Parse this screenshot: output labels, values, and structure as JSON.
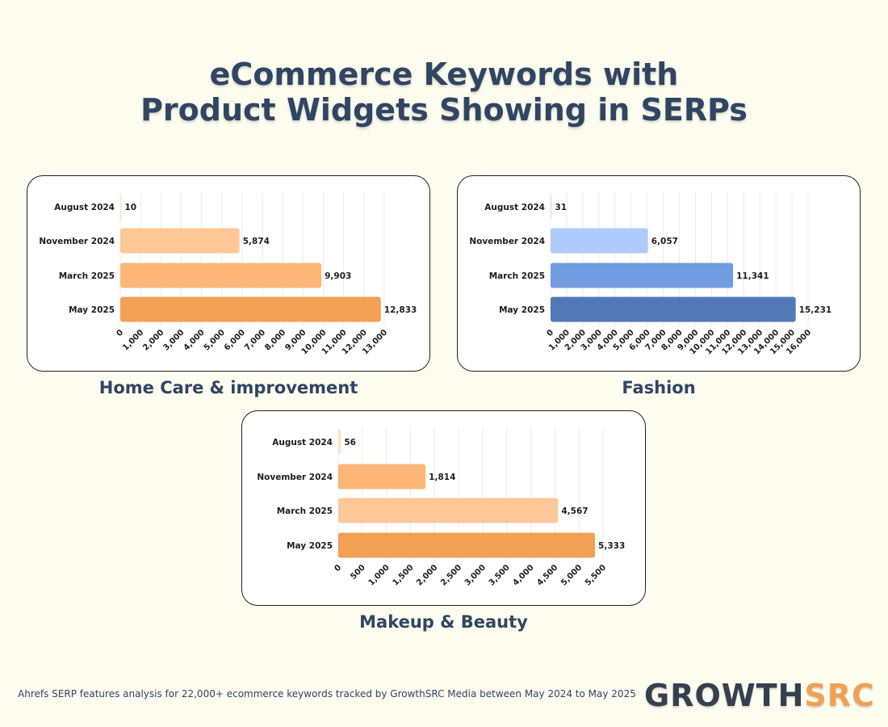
{
  "title_lines": [
    "eCommerce Keywords with",
    "Product Widgets Showing in SERPs"
  ],
  "footer": "Ahrefs SERP features analysis for 22,000+ ecommerce keywords tracked by GrowthSRC Media between May 2024 to May 2025",
  "logo": {
    "part1": "GROWTH",
    "part2": "SRC",
    "color1": "#34404d",
    "color2": "#f0a055"
  },
  "chart_data": [
    {
      "type": "bar",
      "orientation": "horizontal",
      "title": "Home Care & improvement",
      "categories": [
        "August 2024",
        "November 2024",
        "March 2025",
        "May 2025"
      ],
      "values": [
        10,
        5874,
        9903,
        12833
      ],
      "value_labels": [
        "10",
        "5,874",
        "9,903",
        "12,833"
      ],
      "colors": [
        "#fde3c6",
        "#fdc797",
        "#fdb676",
        "#f1a055"
      ],
      "xlim": [
        0,
        13000
      ],
      "ticks": [
        "0",
        "1,000",
        "2,000",
        "3,000",
        "4,000",
        "5,000",
        "6,000",
        "7,000",
        "8,000",
        "9,000",
        "10,000",
        "11,000",
        "12,000",
        "13,000"
      ],
      "grid": true
    },
    {
      "type": "bar",
      "orientation": "horizontal",
      "title": "Fashion",
      "categories": [
        "August 2024",
        "November 2024",
        "March 2025",
        "May 2025"
      ],
      "values": [
        31,
        6057,
        11341,
        15231
      ],
      "value_labels": [
        "31",
        "6,057",
        "11,341",
        "15,231"
      ],
      "colors": [
        "#dbe6fb",
        "#aecbfb",
        "#729ce0",
        "#5279b6"
      ],
      "xlim": [
        0,
        16000
      ],
      "ticks": [
        "0",
        "1,000",
        "2,000",
        "3,000",
        "4,000",
        "5,000",
        "6,000",
        "7,000",
        "8,000",
        "9,000",
        "10,000",
        "11,000",
        "12,000",
        "13,000",
        "14,000",
        "15,000",
        "16,000"
      ],
      "grid": true
    },
    {
      "type": "bar",
      "orientation": "horizontal",
      "title": "Makeup & Beauty",
      "categories": [
        "August 2024",
        "November 2024",
        "March 2025",
        "May 2025"
      ],
      "values": [
        56,
        1814,
        4567,
        5333
      ],
      "value_labels": [
        "56",
        "1,814",
        "4,567",
        "5,333"
      ],
      "colors": [
        "#fde3c6",
        "#fdb676",
        "#fdc797",
        "#f1a055"
      ],
      "xlim": [
        0,
        5500
      ],
      "ticks": [
        "0",
        "500",
        "1,000",
        "1,500",
        "2,000",
        "2,500",
        "3,000",
        "3,500",
        "4,000",
        "4,500",
        "5,000",
        "5,500"
      ],
      "grid": true
    }
  ]
}
